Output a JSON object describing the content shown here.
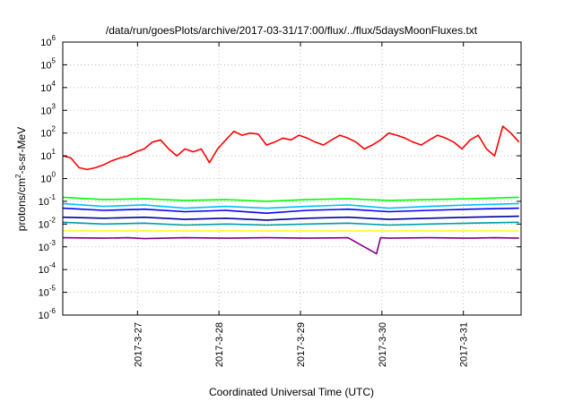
{
  "chart_data": {
    "type": "line",
    "title": "/data/run/goesPlots/archive/2017-03-31/17:00/flux/../flux/5daysMoonFluxes.txt",
    "xlabel": "Coordinated Universal Time (UTC)",
    "ylabel_parts": [
      "protons/cm",
      "2",
      "-s-sr-MeV"
    ],
    "y_scale": "log",
    "ylim": [
      1e-06,
      1000000.0
    ],
    "y_ticks": [
      {
        "base": "10",
        "exp": "-6",
        "value": 1e-06
      },
      {
        "base": "10",
        "exp": "-5",
        "value": 1e-05
      },
      {
        "base": "10",
        "exp": "-4",
        "value": 0.0001
      },
      {
        "base": "10",
        "exp": "-3",
        "value": 0.001
      },
      {
        "base": "10",
        "exp": "-2",
        "value": 0.01
      },
      {
        "base": "10",
        "exp": "-1",
        "value": 0.1
      },
      {
        "base": "10",
        "exp": "0",
        "value": 1
      },
      {
        "base": "10",
        "exp": "1",
        "value": 10
      },
      {
        "base": "10",
        "exp": "2",
        "value": 100
      },
      {
        "base": "10",
        "exp": "3",
        "value": 1000
      },
      {
        "base": "10",
        "exp": "4",
        "value": 10000
      },
      {
        "base": "10",
        "exp": "5",
        "value": 100000
      },
      {
        "base": "10",
        "exp": "6",
        "value": 1000000
      }
    ],
    "x_range_days": [
      "2017-03-26T02:00",
      "2017-03-31T17:00"
    ],
    "x_ticks": [
      "2017-3-27",
      "2017-3-28",
      "2017-3-29",
      "2017-3-30",
      "2017-3-31"
    ],
    "grid": true,
    "series": [
      {
        "color": "#ff0000",
        "x": [
          0.0,
          0.1,
          0.2,
          0.3,
          0.4,
          0.5,
          0.6,
          0.7,
          0.8,
          0.9,
          1.0,
          1.1,
          1.2,
          1.3,
          1.4,
          1.5,
          1.6,
          1.7,
          1.8,
          1.9,
          2.0,
          2.1,
          2.2,
          2.3,
          2.4,
          2.5,
          2.6,
          2.7,
          2.8,
          2.9,
          3.0,
          3.1,
          3.2,
          3.3,
          3.4,
          3.5,
          3.6,
          3.7,
          3.8,
          3.9,
          4.0,
          4.1,
          4.2,
          4.3,
          4.4,
          4.5,
          4.6,
          4.7,
          4.8,
          4.9,
          5.0,
          5.1,
          5.2,
          5.3,
          5.4,
          5.5,
          5.6
        ],
        "values": [
          10,
          8,
          3,
          2.5,
          3,
          4,
          6,
          8,
          10,
          15,
          20,
          40,
          50,
          20,
          10,
          20,
          15,
          20,
          5,
          20,
          50,
          120,
          80,
          100,
          90,
          30,
          40,
          60,
          50,
          80,
          60,
          40,
          30,
          50,
          80,
          60,
          40,
          20,
          30,
          50,
          100,
          80,
          60,
          40,
          30,
          50,
          80,
          60,
          40,
          20,
          50,
          80,
          20,
          10,
          200,
          100,
          40
        ]
      },
      {
        "color": "#00ff00",
        "x": [
          0.0,
          0.5,
          1.0,
          1.5,
          2.0,
          2.5,
          3.0,
          3.5,
          4.0,
          4.5,
          5.0,
          5.6
        ],
        "values": [
          0.15,
          0.12,
          0.13,
          0.11,
          0.12,
          0.1,
          0.12,
          0.13,
          0.11,
          0.12,
          0.13,
          0.15
        ]
      },
      {
        "color": "#00c0ff",
        "x": [
          0.0,
          0.5,
          1.0,
          1.5,
          2.0,
          2.5,
          3.0,
          3.5,
          4.0,
          4.5,
          5.0,
          5.6
        ],
        "values": [
          0.08,
          0.06,
          0.07,
          0.05,
          0.06,
          0.05,
          0.06,
          0.07,
          0.05,
          0.06,
          0.07,
          0.08
        ]
      },
      {
        "color": "#0000ff",
        "x": [
          0.0,
          0.5,
          1.0,
          1.5,
          2.0,
          2.5,
          3.0,
          3.5,
          4.0,
          4.5,
          5.0,
          5.6
        ],
        "values": [
          0.05,
          0.04,
          0.045,
          0.035,
          0.04,
          0.03,
          0.04,
          0.045,
          0.035,
          0.04,
          0.045,
          0.05
        ]
      },
      {
        "color": "#0000a0",
        "x": [
          0.0,
          0.5,
          1.0,
          1.5,
          2.0,
          2.5,
          3.0,
          3.5,
          4.0,
          4.5,
          5.0,
          5.6
        ],
        "values": [
          0.02,
          0.018,
          0.02,
          0.016,
          0.018,
          0.015,
          0.018,
          0.02,
          0.016,
          0.018,
          0.02,
          0.022
        ]
      },
      {
        "color": "#00a0a0",
        "x": [
          0.0,
          0.5,
          1.0,
          1.5,
          2.0,
          2.5,
          3.0,
          3.5,
          4.0,
          4.5,
          5.0,
          5.6
        ],
        "values": [
          0.012,
          0.01,
          0.011,
          0.009,
          0.01,
          0.009,
          0.01,
          0.011,
          0.009,
          0.01,
          0.011,
          0.012
        ]
      },
      {
        "color": "#ffff00",
        "x": [
          0.0,
          0.5,
          1.0,
          1.5,
          2.0,
          2.5,
          3.0,
          3.5,
          4.0,
          4.5,
          5.0,
          5.6
        ],
        "values": [
          0.005,
          0.005,
          0.005,
          0.005,
          0.005,
          0.005,
          0.005,
          0.005,
          0.005,
          0.005,
          0.005,
          0.005
        ]
      },
      {
        "color": "#800080",
        "x": [
          0.0,
          0.5,
          0.8,
          1.0,
          1.5,
          2.0,
          2.5,
          3.0,
          3.5,
          3.85,
          3.9,
          4.0,
          4.5,
          5.0,
          5.3,
          5.6
        ],
        "values": [
          0.0025,
          0.0024,
          0.0025,
          0.0023,
          0.0025,
          0.0024,
          0.0025,
          0.0024,
          0.0025,
          0.0005,
          0.0025,
          0.0024,
          0.0025,
          0.0024,
          0.0025,
          0.0024
        ]
      }
    ]
  }
}
